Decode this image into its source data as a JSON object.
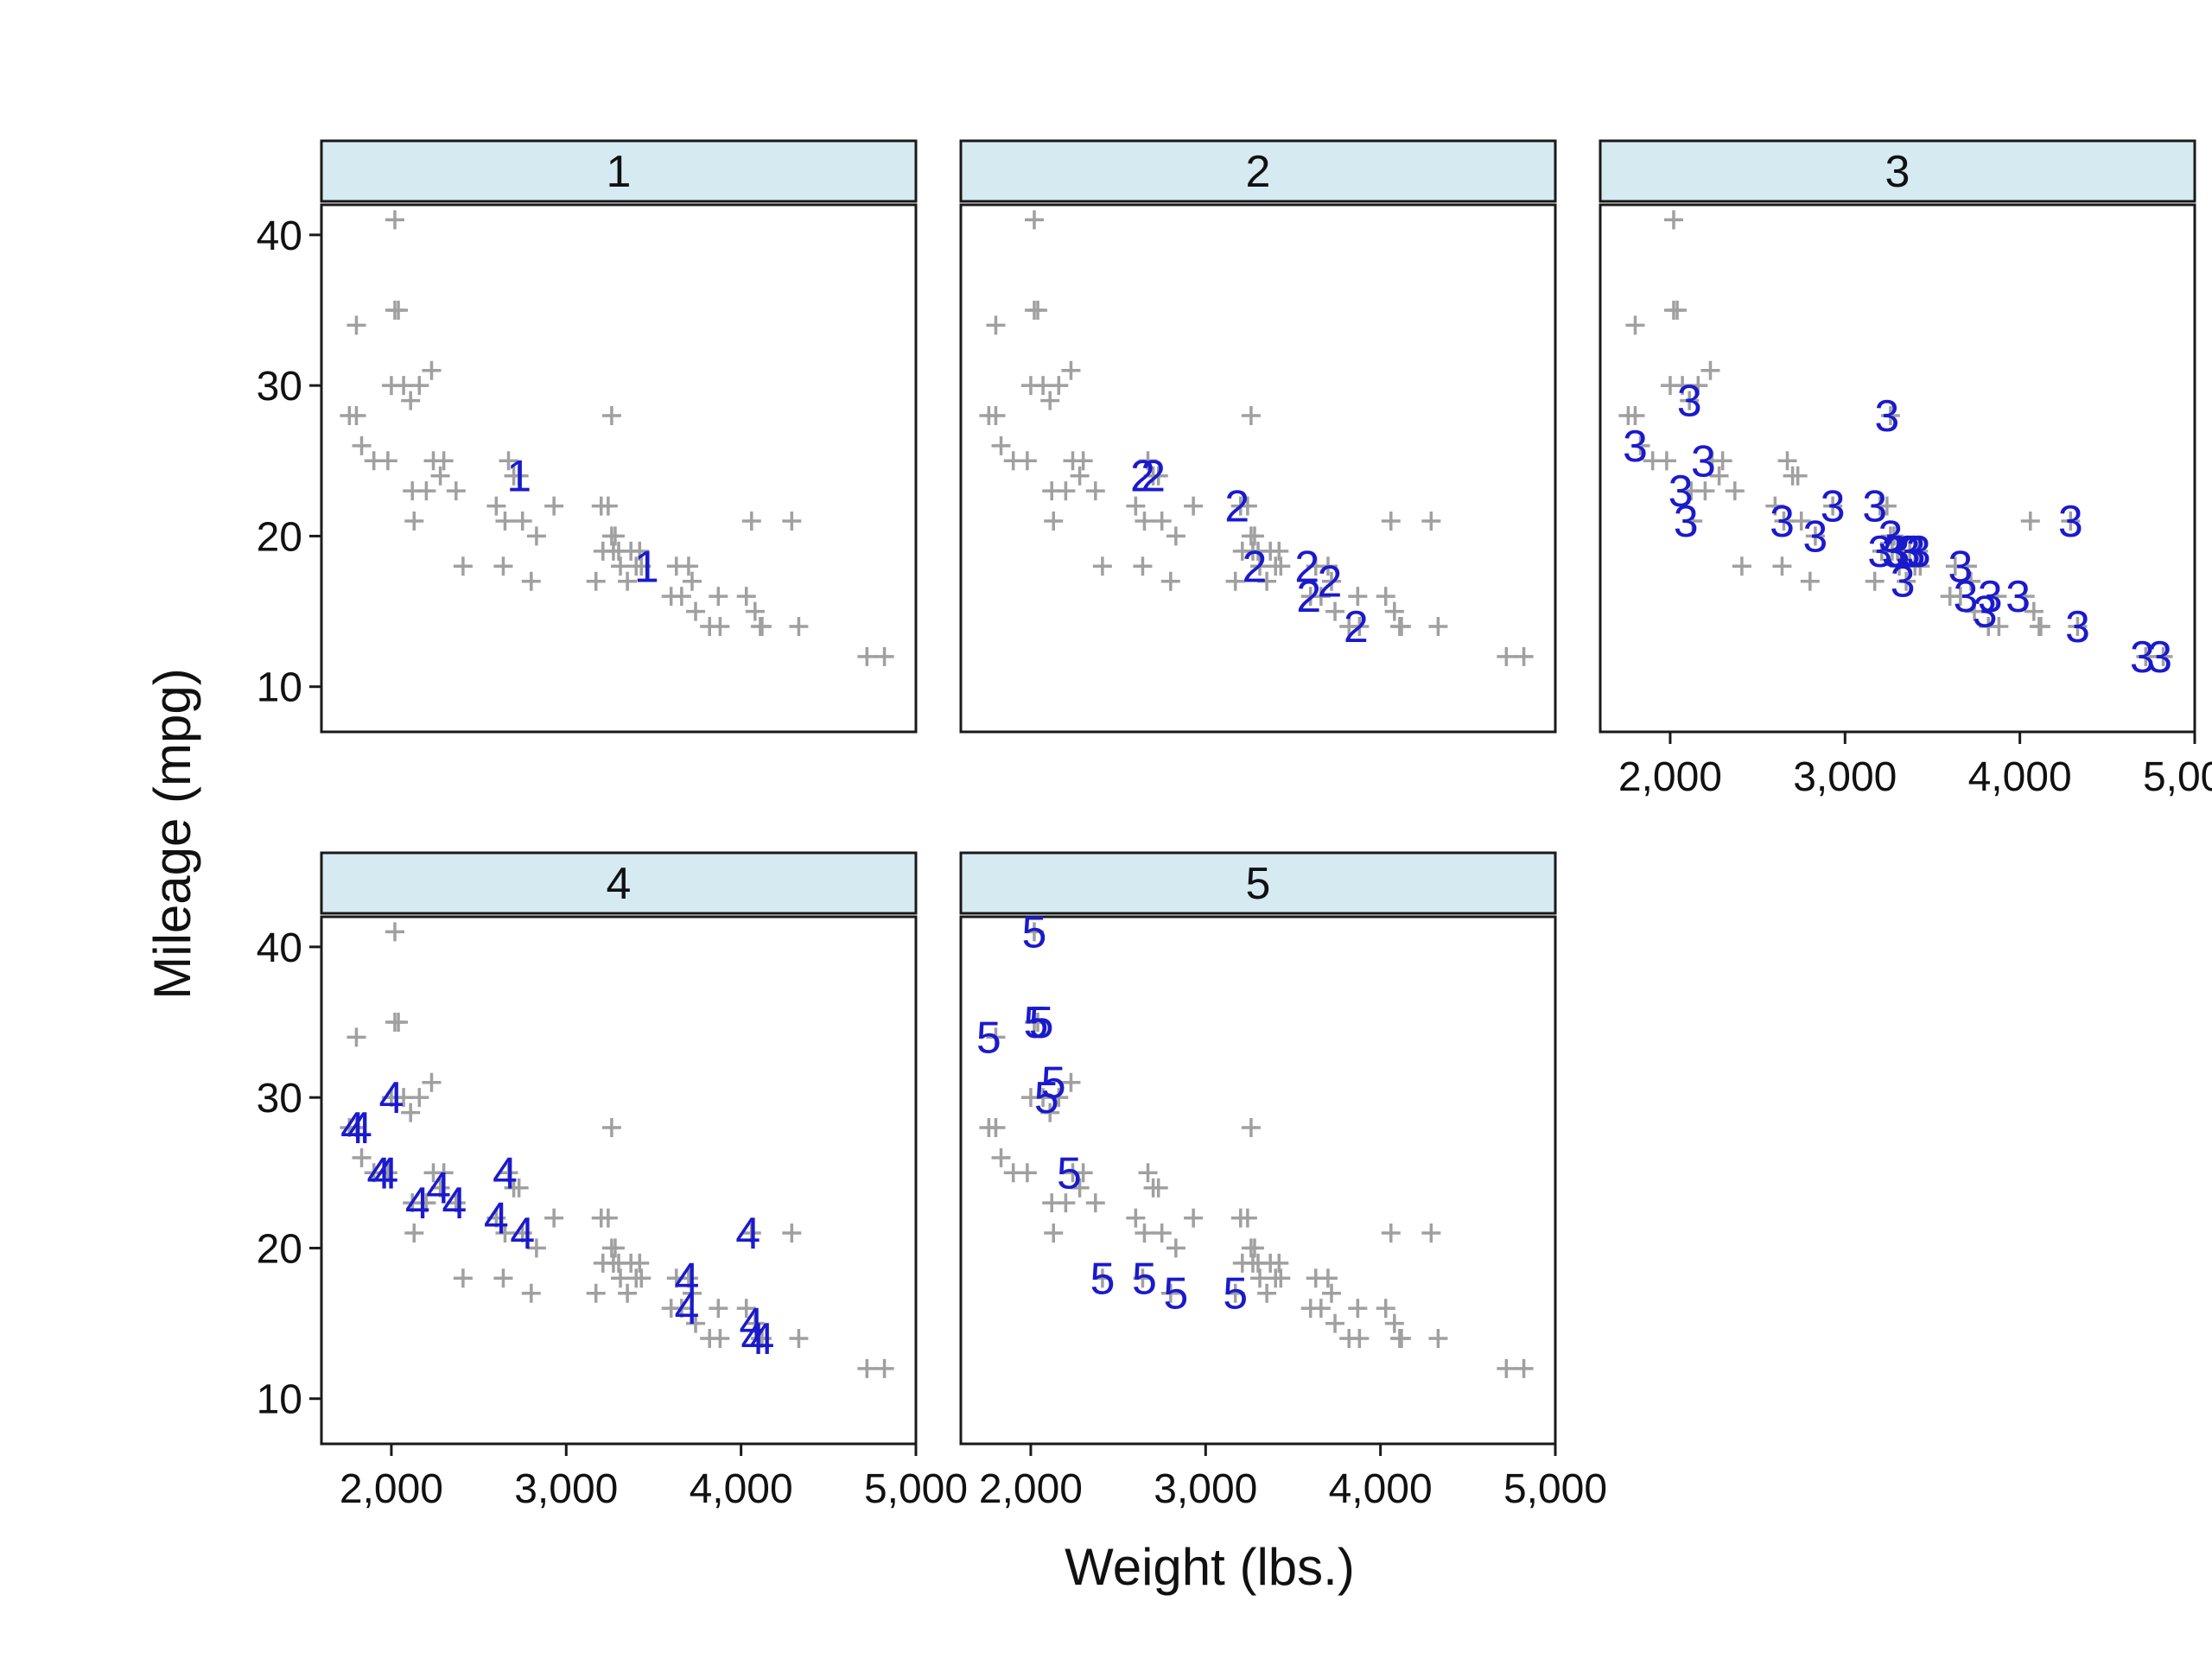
{
  "chart_data": {
    "type": "scatter",
    "xlabel": "Weight (lbs.)",
    "ylabel": "Mileage (mpg)",
    "xlim": [
      1600,
      5000
    ],
    "ylim": [
      7,
      42
    ],
    "xticks": [
      2000,
      3000,
      4000,
      5000
    ],
    "xtick_labels": [
      "2,000",
      "3,000",
      "4,000",
      "5,000"
    ],
    "yticks": [
      10,
      20,
      30,
      40
    ],
    "ytick_labels": [
      "10",
      "20",
      "30",
      "40"
    ],
    "layout": "3 columns x 2 rows, panels 1-5 faceted by group",
    "background_marker": "+",
    "colors": {
      "background": "#a0a0a0",
      "highlight": "#1a1acc",
      "strip": "#d6eaf2"
    },
    "background_points": [
      [
        1760,
        28
      ],
      [
        1800,
        34
      ],
      [
        1800,
        28
      ],
      [
        1830,
        26
      ],
      [
        1900,
        25
      ],
      [
        1980,
        25
      ],
      [
        2000,
        30
      ],
      [
        2020,
        41
      ],
      [
        2020,
        35
      ],
      [
        2040,
        35
      ],
      [
        2070,
        30
      ],
      [
        2110,
        29
      ],
      [
        2120,
        23
      ],
      [
        2130,
        21
      ],
      [
        2160,
        30
      ],
      [
        2200,
        23
      ],
      [
        2230,
        31
      ],
      [
        2240,
        25
      ],
      [
        2280,
        24
      ],
      [
        2300,
        25
      ],
      [
        2370,
        23
      ],
      [
        2410,
        18
      ],
      [
        2600,
        22
      ],
      [
        2640,
        18
      ],
      [
        2650,
        21
      ],
      [
        2670,
        25
      ],
      [
        2700,
        24
      ],
      [
        2730,
        24
      ],
      [
        2750,
        21
      ],
      [
        2800,
        17
      ],
      [
        2830,
        20
      ],
      [
        2930,
        22
      ],
      [
        3170,
        17
      ],
      [
        3200,
        22
      ],
      [
        3210,
        19
      ],
      [
        3240,
        22
      ],
      [
        3260,
        28
      ],
      [
        3260,
        20
      ],
      [
        3270,
        19
      ],
      [
        3280,
        20
      ],
      [
        3300,
        19
      ],
      [
        3310,
        18
      ],
      [
        3350,
        17
      ],
      [
        3370,
        19
      ],
      [
        3400,
        18
      ],
      [
        3420,
        19
      ],
      [
        3430,
        18
      ],
      [
        3600,
        16
      ],
      [
        3630,
        18
      ],
      [
        3660,
        16
      ],
      [
        3700,
        18
      ],
      [
        3720,
        17
      ],
      [
        3740,
        15
      ],
      [
        3820,
        14
      ],
      [
        3870,
        16
      ],
      [
        3880,
        14
      ],
      [
        4030,
        16
      ],
      [
        4060,
        21
      ],
      [
        4080,
        15
      ],
      [
        4110,
        14
      ],
      [
        4120,
        14
      ],
      [
        4290,
        21
      ],
      [
        4330,
        14
      ],
      [
        4720,
        12
      ],
      [
        4820,
        12
      ]
    ],
    "panels": [
      {
        "label": "1",
        "points": [
          [
            2730,
            24
          ],
          [
            3460,
            18
          ]
        ]
      },
      {
        "label": "2",
        "points": [
          [
            2640,
            24
          ],
          [
            2700,
            24
          ],
          [
            3180,
            22
          ],
          [
            3280,
            18
          ],
          [
            3580,
            18
          ],
          [
            3590,
            16
          ],
          [
            3710,
            17
          ],
          [
            3860,
            14
          ]
        ]
      },
      {
        "label": "3",
        "points": [
          [
            1800,
            26
          ],
          [
            2060,
            23
          ],
          [
            2090,
            21
          ],
          [
            2110,
            29
          ],
          [
            2190,
            25
          ],
          [
            2640,
            21
          ],
          [
            2830,
            20
          ],
          [
            2930,
            22
          ],
          [
            3170,
            22
          ],
          [
            3200,
            19
          ],
          [
            3240,
            28
          ],
          [
            3260,
            20
          ],
          [
            3280,
            19
          ],
          [
            3300,
            19
          ],
          [
            3330,
            17
          ],
          [
            3360,
            19
          ],
          [
            3390,
            19
          ],
          [
            3420,
            19
          ],
          [
            3660,
            18
          ],
          [
            3690,
            16
          ],
          [
            3800,
            15
          ],
          [
            3830,
            16
          ],
          [
            3990,
            16
          ],
          [
            4290,
            21
          ],
          [
            4330,
            14
          ],
          [
            4700,
            12
          ],
          [
            4800,
            12
          ]
        ]
      },
      {
        "label": "4",
        "points": [
          [
            1780,
            28
          ],
          [
            1820,
            28
          ],
          [
            1930,
            25
          ],
          [
            1970,
            25
          ],
          [
            2000,
            30
          ],
          [
            2150,
            23
          ],
          [
            2270,
            24
          ],
          [
            2360,
            23
          ],
          [
            2600,
            22
          ],
          [
            2650,
            25
          ],
          [
            2750,
            21
          ],
          [
            3690,
            18
          ],
          [
            3690,
            16
          ],
          [
            4040,
            21
          ],
          [
            4060,
            15
          ],
          [
            4070,
            14
          ],
          [
            4120,
            14
          ]
        ]
      },
      {
        "label": "5",
        "points": [
          [
            1760,
            34
          ],
          [
            2020,
            41
          ],
          [
            2030,
            35
          ],
          [
            2060,
            35
          ],
          [
            2090,
            30
          ],
          [
            2130,
            31
          ],
          [
            2220,
            25
          ],
          [
            2410,
            18
          ],
          [
            2650,
            18
          ],
          [
            2830,
            17
          ],
          [
            3170,
            17
          ]
        ]
      }
    ]
  }
}
